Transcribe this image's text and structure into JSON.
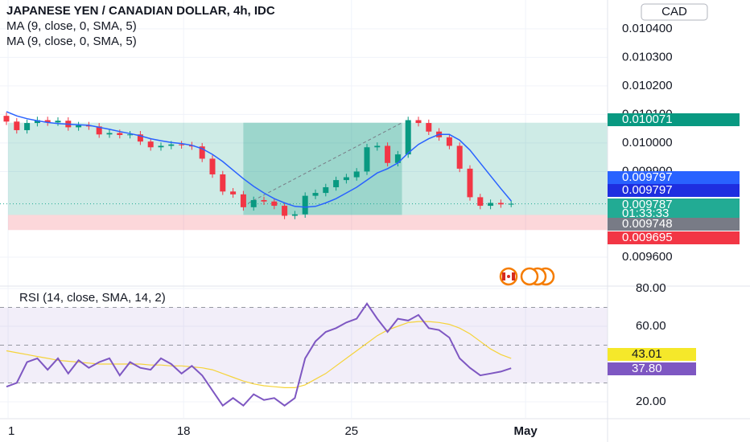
{
  "chart_data": {
    "type": "candlestick",
    "title": "JAPANESE YEN / CANADIAN DOLLAR, 4h, IDC",
    "currency": "CAD",
    "indicators": [
      "MA (9, close, 0, SMA, 5)",
      "MA (9, close, 0, SMA, 5)"
    ],
    "up_color": "#089981",
    "down_color": "#f23645",
    "open": [
      0.010095,
      0.010075,
      0.010045,
      0.01007,
      0.01008,
      0.010072,
      0.010078,
      0.010055,
      0.010062,
      0.010058,
      0.01003,
      0.010035,
      0.010028,
      0.01003,
      0.010005,
      0.009985,
      0.00999,
      0.009995,
      0.009992,
      0.009988,
      0.009945,
      0.00989,
      0.00983,
      0.00982,
      0.009775,
      0.0098,
      0.009795,
      0.00978,
      0.009745,
      0.00975,
      0.009815,
      0.009825,
      0.009845,
      0.00987,
      0.00988,
      0.0099,
      0.009985,
      0.00999,
      0.00993,
      0.00996,
      0.01008,
      0.01007,
      0.01004,
      0.01002,
      0.00999,
      0.00991,
      0.00981,
      0.00978,
      0.00979,
      0.009785
    ],
    "high": [
      0.010107,
      0.010087,
      0.010082,
      0.010092,
      0.010092,
      0.01009,
      0.01009,
      0.010074,
      0.010074,
      0.01007,
      0.010047,
      0.010047,
      0.010042,
      0.010042,
      0.010017,
      0.010002,
      0.010007,
      0.010007,
      0.010004,
      0.01,
      0.009957,
      0.009902,
      0.009842,
      0.009832,
      0.009812,
      0.009812,
      0.009807,
      0.009792,
      0.009762,
      0.009827,
      0.009837,
      0.009857,
      0.009882,
      0.009892,
      0.009912,
      0.009997,
      0.010002,
      0.010002,
      0.009972,
      0.010092,
      0.010092,
      0.010082,
      0.010052,
      0.010032,
      0.010002,
      0.009922,
      0.009822,
      0.009802,
      0.009802,
      0.009799
    ],
    "low": [
      0.010063,
      0.010033,
      0.010033,
      0.010058,
      0.01006,
      0.01006,
      0.010043,
      0.010043,
      0.010046,
      0.010018,
      0.010018,
      0.010016,
      0.010016,
      0.009993,
      0.009973,
      0.009973,
      0.009978,
      0.00998,
      0.009976,
      0.009933,
      0.009878,
      0.009818,
      0.009808,
      0.009763,
      0.009763,
      0.009783,
      0.009768,
      0.009733,
      0.009733,
      0.009738,
      0.009803,
      0.009813,
      0.009833,
      0.009858,
      0.009868,
      0.009888,
      0.009973,
      0.009918,
      0.009918,
      0.009948,
      0.010058,
      0.010028,
      0.010008,
      0.009978,
      0.009898,
      0.009798,
      0.009768,
      0.009768,
      0.009773,
      0.009775
    ],
    "close": [
      0.010075,
      0.010045,
      0.01007,
      0.01008,
      0.010072,
      0.010078,
      0.010055,
      0.010062,
      0.010058,
      0.01003,
      0.010035,
      0.010028,
      0.01003,
      0.010005,
      0.009985,
      0.00999,
      0.009995,
      0.009992,
      0.009988,
      0.009945,
      0.00989,
      0.00983,
      0.00982,
      0.009775,
      0.0098,
      0.009795,
      0.00978,
      0.009745,
      0.00975,
      0.009815,
      0.009825,
      0.009845,
      0.00987,
      0.00988,
      0.0099,
      0.009985,
      0.00999,
      0.00993,
      0.00996,
      0.01008,
      0.01007,
      0.01004,
      0.01002,
      0.00999,
      0.00991,
      0.00981,
      0.00978,
      0.00979,
      0.009785,
      0.009787
    ],
    "ma": {
      "color": "#2962ff",
      "values": [
        0.01011,
        0.010095,
        0.010085,
        0.010078,
        0.010072,
        0.010068,
        0.010066,
        0.010064,
        0.010062,
        0.010055,
        0.010048,
        0.01004,
        0.010033,
        0.010025,
        0.010015,
        0.010008,
        0.010002,
        0.009998,
        0.009992,
        0.00998,
        0.00996,
        0.009935,
        0.009905,
        0.009875,
        0.009848,
        0.009825,
        0.009805,
        0.00979,
        0.009778,
        0.009775,
        0.009778,
        0.00979,
        0.009805,
        0.009825,
        0.009845,
        0.00987,
        0.009895,
        0.00991,
        0.00993,
        0.009965,
        0.009995,
        0.010015,
        0.01003,
        0.01003,
        0.01001,
        0.009975,
        0.00993,
        0.009885,
        0.00984,
        0.009797
      ]
    },
    "position": {
      "target": 0.010071,
      "entry": 0.009748,
      "stop": 0.009695
    },
    "price_labels": [
      {
        "value": 0.010071,
        "color": "#089981"
      },
      {
        "value": 0.009797,
        "color": "#2962ff"
      },
      {
        "value": 0.009797,
        "color": "#1e2ee0"
      },
      {
        "value": 0.009787,
        "color": "#22ab94"
      },
      {
        "value": 0.009748,
        "color": "#787b86"
      },
      {
        "value": 0.009695,
        "color": "#f23645"
      }
    ],
    "countdown": "01:33:33",
    "ylim": [
      0.0095014,
      0.010501
    ],
    "yticks": [
      {
        "value": 0.0104,
        "label": "0.010400"
      },
      {
        "value": 0.0103,
        "label": "0.010300"
      },
      {
        "value": 0.0102,
        "label": "0.010200"
      },
      {
        "value": 0.0101,
        "label": "0.010100"
      },
      {
        "value": 0.01,
        "label": "0.010000"
      },
      {
        "value": 0.0099,
        "label": "0.009900"
      },
      {
        "value": 0.0096,
        "label": "0.009600"
      }
    ],
    "xlim": [
      -0.625,
      58.36
    ],
    "xticks": [
      {
        "value": 0.16,
        "label": "1"
      },
      {
        "value": 17.2,
        "label": "18"
      },
      {
        "value": 33.5,
        "label": "25"
      },
      {
        "value": 50.4,
        "label": "May"
      }
    ],
    "rsi": {
      "title": "RSI (14, close, SMA, 14, 2)",
      "color": "#7e57c2",
      "ma_color": "#f5d33a",
      "values": [
        28,
        30,
        41,
        43,
        37,
        43,
        35,
        42,
        38,
        41,
        43,
        34,
        41,
        38,
        37,
        43,
        40,
        35,
        39,
        34,
        26,
        18,
        22,
        18,
        24,
        21,
        22,
        18,
        22,
        43,
        52,
        57,
        59,
        62,
        64,
        72,
        64,
        57,
        64,
        63,
        66,
        59,
        58,
        54,
        43,
        38,
        34,
        35,
        36,
        37.8
      ],
      "ma_values": [
        47,
        46,
        45,
        44,
        43,
        42,
        41.5,
        41,
        40.5,
        40,
        40,
        40,
        40,
        40,
        39.5,
        39.5,
        39,
        39,
        38.5,
        38,
        37,
        35,
        33,
        31,
        29.5,
        28.5,
        28,
        27.5,
        27.5,
        29,
        32,
        35,
        39,
        43,
        47,
        51,
        55,
        58,
        60,
        62,
        62.5,
        62.5,
        62,
        61,
        59,
        56,
        52,
        48,
        45,
        43.01
      ],
      "labels": [
        {
          "value": 43.01,
          "label": "43.01",
          "color": "#f5e82a"
        },
        {
          "value": 37.8,
          "label": "37.80",
          "color": "#7e57c2"
        }
      ],
      "bands": {
        "upper": 70,
        "middle": 50,
        "lower": 30
      },
      "ylim": [
        11.49,
        80.85
      ],
      "yticks": [
        {
          "value": 80,
          "label": "80.00"
        },
        {
          "value": 60,
          "label": "60.00"
        },
        {
          "value": 20,
          "label": "20.00"
        }
      ]
    }
  }
}
